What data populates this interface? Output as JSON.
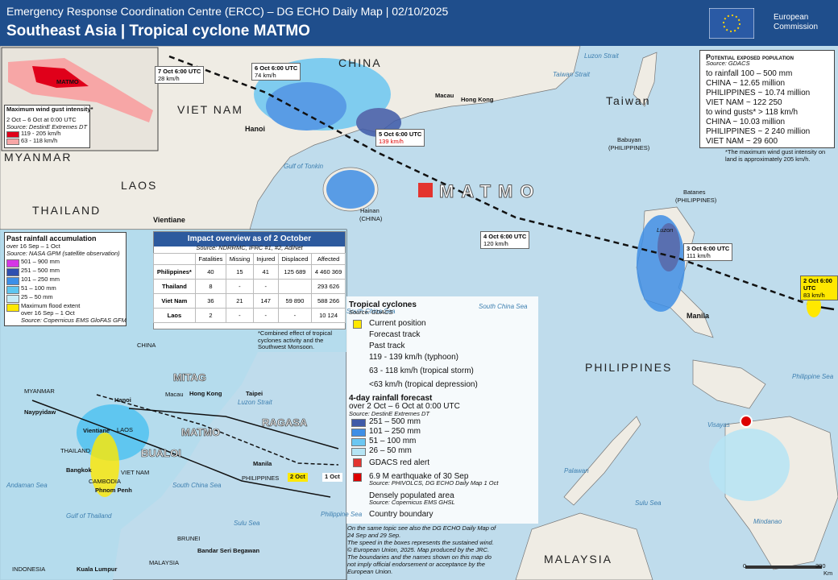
{
  "header": {
    "title": "Emergency Response Coordination Centre (ERCC) – DG ECHO Daily Map | 02/10/2025",
    "subtitle": "Southeast Asia | Tropical cyclone MATMO",
    "logo": "European Commission"
  },
  "places": [
    "CHINA",
    "VIET NAM",
    "LAOS",
    "THAILAND",
    "MYANMAR",
    "Taiwan",
    "PHILIPPINES",
    "MALAYSIA",
    "Hanoi",
    "Vientiane",
    "Manila",
    "Macau",
    "Hong Kong",
    "Hainan",
    "(CHINA)",
    "Gulf of Tonkin",
    "South China Sea",
    "Luzon",
    "Luzon Strait",
    "Taiwan Strait",
    "Babuyan",
    "(PHILIPPINES)",
    "Batanes",
    "(PHILIPPINES)",
    "Philippine Sea",
    "Visayas",
    "Palawan",
    "Sulu Sea",
    "Mindanao",
    "South China Sea",
    "MATMO"
  ],
  "track": [
    {
      "time": "7 Oct 6:00 UTC",
      "speed": "28 km/h"
    },
    {
      "time": "6 Oct 6:00 UTC",
      "speed": "74 km/h"
    },
    {
      "time": "5 Oct 6:00 UTC",
      "speed": "139 km/h"
    },
    {
      "time": "4 Oct 6:00 UTC",
      "speed": "120 km/h"
    },
    {
      "time": "3 Oct 6:00 UTC",
      "speed": "111 km/h"
    },
    {
      "time": "2 Oct 6:00 UTC",
      "speed": "83 km/h"
    }
  ],
  "population": {
    "title": "Potential exposed population",
    "source": "Source: GDACS",
    "rain_heading": "to rainfall 100 – 500 mm",
    "rain_rows": [
      "CHINA ~ 12.65 million",
      "PHILIPPINES ~ 10.74 million",
      "VIET NAM ~ 122 250"
    ],
    "wind_heading": "to wind gusts* > 118 km/h",
    "wind_rows": [
      "CHINA ~ 10.03 million",
      "PHILIPPINES ~ 2 240 million",
      "VIET NAM ~ 29 600"
    ],
    "note": "*The maximum wind gust intensity on land is approximately  205 km/h."
  },
  "inset": {
    "title": "Maximum wind gust intensity*",
    "period": "2 Oct – 6 Oct at 0:00 UTC",
    "source": "Source: DestinE Extremes DT",
    "items": [
      {
        "label": "119 - 205 km/h",
        "color": "#e0001a"
      },
      {
        "label": "63 - 118 km/h",
        "color": "#f7a6a6"
      }
    ],
    "cyclone": "MATMO"
  },
  "rainfall": {
    "title": "Past rainfall accumulation",
    "period": "over 16 Sep – 1 Oct",
    "source": "Source: NASA GPM (satellite observation)",
    "items": [
      {
        "label": "501 – 900 mm",
        "color": "#d636e6"
      },
      {
        "label": "251 – 500 mm",
        "color": "#2f4fb0"
      },
      {
        "label": "101 – 250 mm",
        "color": "#3c8fe8"
      },
      {
        "label": "51 – 100 mm",
        "color": "#5fc6f0"
      },
      {
        "label": "25 – 50 mm",
        "color": "#c8ecf6"
      }
    ],
    "flood": "Maximum flood extent",
    "flood_period": "over 16 Sep – 1 Oct",
    "flood_source": "Source: Copernicus EMS GloFAS GFM"
  },
  "impact": {
    "title": "Impact overview as of 2 October",
    "source": "Source: NDRRMC, IFRC #1, #2, AdiNet",
    "columns": [
      "Fatalities",
      "Missing",
      "Injured",
      "Displaced",
      "Affected"
    ],
    "rows": [
      [
        "Philippines*",
        "40",
        "15",
        "41",
        "125 689",
        "4 460 369"
      ],
      [
        "Thailand",
        "8",
        "-",
        "-",
        "",
        "293 626"
      ],
      [
        "Viet Nam",
        "36",
        "21",
        "147",
        "59 890",
        "588 266"
      ],
      [
        "Laos",
        "2",
        "-",
        "-",
        "-",
        "10 124"
      ]
    ],
    "note": "*Combined effect of tropical cyclones activity and the Southwest Monsoon."
  },
  "overview": {
    "labels": [
      "CHINA",
      "MITAG",
      "RAGASA",
      "MATMO",
      "BUALOI",
      "Hanoi",
      "Vientiane",
      "Bangkok",
      "Phnom Penh",
      "Manila",
      "Taipei",
      "Hong Kong",
      "THAILAND",
      "VIET NAM",
      "CAMBODIA",
      "PHILIPPINES",
      "MALAYSIA",
      "INDONESIA",
      "Kuala Lumpur",
      "Bandar Seri Begawan",
      "Naypyidaw",
      "MYANMAR",
      "Andaman Sea",
      "Gulf of Thailand",
      "South China Sea",
      "Philippine Sea",
      "Sulu Sea",
      "Luzon Strait",
      "Macau",
      "BRUNEI",
      "LAOS"
    ],
    "dates": [
      "2 Oct",
      "1 Oct"
    ]
  },
  "legend": {
    "cyclone_title": "Tropical cyclones",
    "cyclone_source": "Source: GDACS",
    "cyclone_items": [
      "Current position",
      "Forecast track",
      "Past track",
      "119 - 139 km/h (typhoon)",
      "63 - 118 km/h (tropical storm)",
      "<63 km/h (tropical depression)"
    ],
    "forecast_title": "4-day rainfall forecast",
    "forecast_period": "over 2 Oct – 6 Oct at 0:00 UTC",
    "forecast_source": "Source: DestinE Extremes DT",
    "forecast_items": [
      {
        "label": "251 – 500 mm",
        "color": "#3f5aa8"
      },
      {
        "label": "101 – 250 mm",
        "color": "#3f8fe6"
      },
      {
        "label": "51 – 100 mm",
        "color": "#6cc7f2"
      },
      {
        "label": "26 – 50 mm",
        "color": "#b5e4f4"
      }
    ],
    "alert": "GDACS red alert",
    "quake": "6.9 M earthquake of 30 Sep",
    "quake_source": "Source: PHIVOLCS, DG ECHO Daily Map 1 Oct",
    "populated": "Densely populated area",
    "populated_source": "Source: Copernicus EMS GHSL",
    "boundary": "Country boundary"
  },
  "footer": [
    "On the same topic see also the DG ECHO Daily Map of",
    "24 Sep and 29 Sep.",
    "The speed in the boxes represents the sustained wind.",
    "© European Union, 2025. Map produced by the JRC.",
    "The boundaries and the names shown on this map do",
    "not imply official endorsement or acceptance by the",
    "European Union."
  ],
  "scale": [
    "0",
    "300",
    "Km"
  ]
}
